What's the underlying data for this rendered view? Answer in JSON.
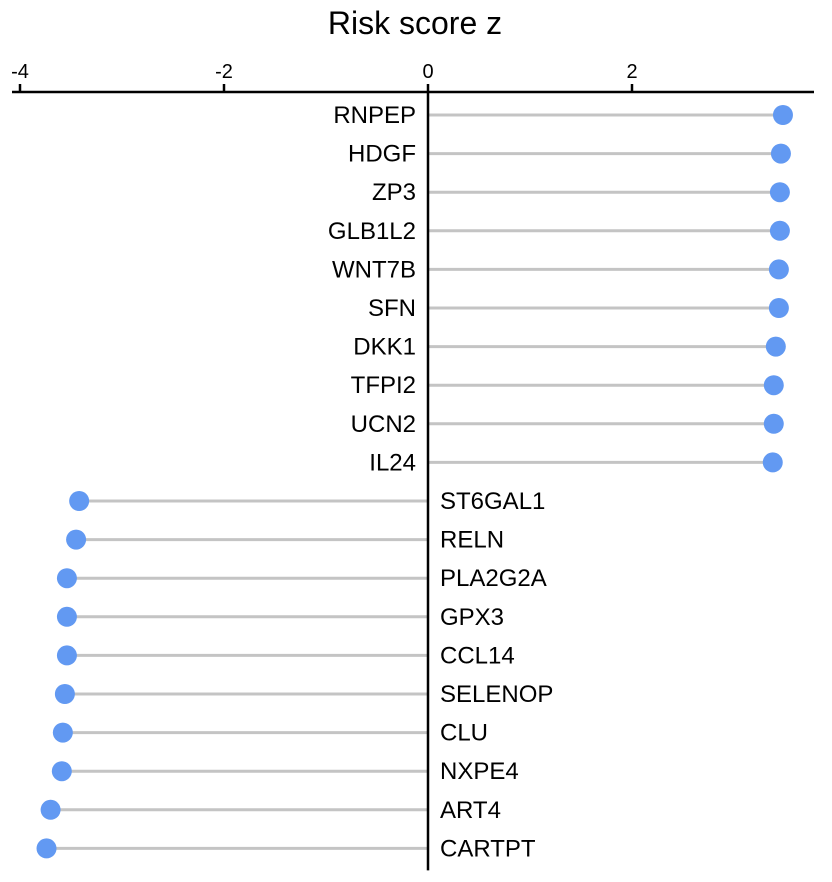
{
  "chart_data": {
    "type": "lollipop",
    "title": "",
    "xlabel": "Risk score z",
    "ylabel": "",
    "xlim": [
      -4.1,
      3.9
    ],
    "xticks": [
      -4,
      -2,
      0,
      2
    ],
    "tick_labels": [
      "-4",
      "-2",
      "0",
      "2"
    ],
    "grid": false,
    "legend": "none",
    "point_color": "#6299f2",
    "stem_color": "#c4c4c4",
    "categories": [
      "RNPEP",
      "HDGF",
      "ZP3",
      "GLB1L2",
      "WNT7B",
      "SFN",
      "DKK1",
      "TFPI2",
      "UCN2",
      "IL24",
      "ST6GAL1",
      "RELN",
      "PLA2G2A",
      "GPX3",
      "CCL14",
      "SELENOP",
      "CLU",
      "NXPE4",
      "ART4",
      "CARTPT"
    ],
    "values": [
      3.48,
      3.46,
      3.45,
      3.45,
      3.44,
      3.44,
      3.41,
      3.39,
      3.39,
      3.38,
      -3.42,
      -3.45,
      -3.54,
      -3.54,
      -3.54,
      -3.56,
      -3.58,
      -3.59,
      -3.7,
      -3.74
    ]
  }
}
